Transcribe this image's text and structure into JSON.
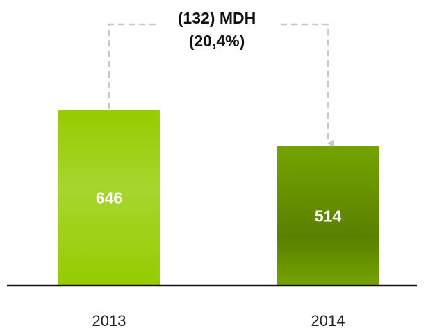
{
  "chart_data": {
    "type": "bar",
    "categories": [
      "2013",
      "2014"
    ],
    "values": [
      646,
      514
    ],
    "colors": [
      "#94cc00",
      "#74a400"
    ],
    "annotations": [
      "(132) MDH",
      "(20,4%)"
    ]
  }
}
